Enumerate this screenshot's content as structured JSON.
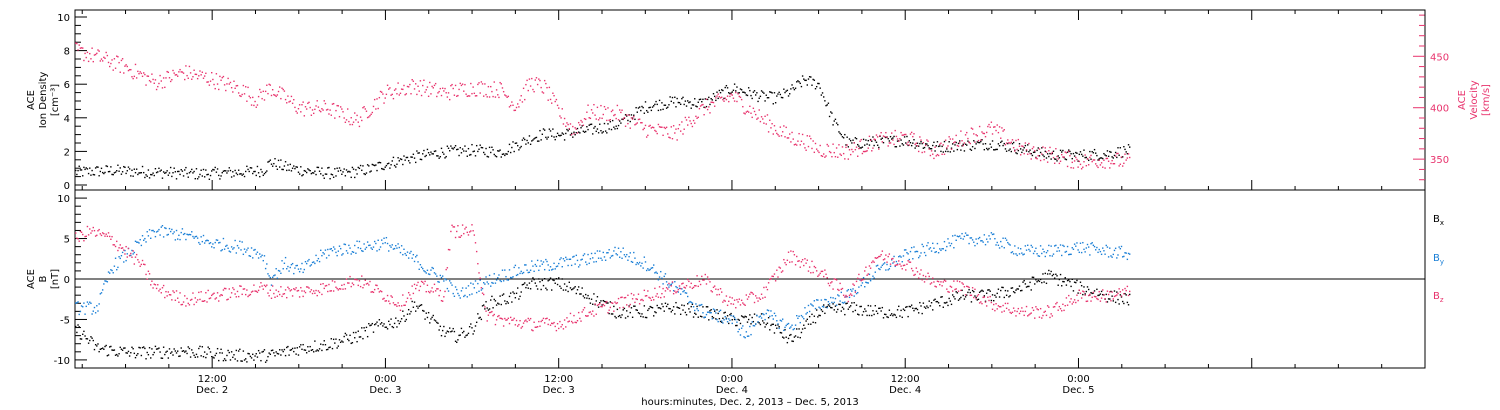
{
  "colors": {
    "black": "#000000",
    "pink": "#e8336d",
    "blue": "#1a7fd6"
  },
  "chart_data": [
    {
      "type": "scatter",
      "panel": "top",
      "ylabel_lines": [
        "ACE",
        "Ion Density",
        "[cm⁻³]"
      ],
      "ylim": [
        0,
        10
      ],
      "y_ticks": [
        "0",
        "2",
        "4",
        "6",
        "8",
        "10"
      ],
      "y2label_lines": [
        "ACE",
        "Velocity",
        "[km/s]"
      ],
      "y2lim": [
        320,
        495
      ],
      "y2_ticks": [
        "350",
        "400",
        "450"
      ],
      "xlim_hours": [
        2.5,
        96
      ],
      "x_major_ticks": [
        {
          "hour": 12,
          "line1": "12:00",
          "line2": "Dec. 2"
        },
        {
          "hour": 24,
          "line1": "0:00",
          "line2": "Dec. 3"
        },
        {
          "hour": 36,
          "line1": "12:00",
          "line2": "Dec. 3"
        },
        {
          "hour": 48,
          "line1": "0:00",
          "line2": "Dec. 4"
        },
        {
          "hour": 60,
          "line1": "12:00",
          "line2": "Dec. 4"
        },
        {
          "hour": 72,
          "line1": "0:00",
          "line2": "Dec. 5"
        }
      ],
      "series": [
        {
          "color": "#000000",
          "axis": "left",
          "x": [
            2.5,
            5,
            8,
            11,
            14,
            15.5,
            16,
            17,
            19,
            21,
            23,
            24,
            26,
            28,
            30,
            32,
            33,
            34,
            35,
            36,
            38,
            40,
            42,
            44,
            46,
            48,
            50,
            51,
            52,
            53,
            54,
            55,
            56,
            58,
            60,
            62,
            64,
            66,
            68,
            70,
            72,
            74,
            75.5
          ],
          "y": [
            0.8,
            0.9,
            0.8,
            0.7,
            0.8,
            0.9,
            1.4,
            1.1,
            0.8,
            0.7,
            1.0,
            1.3,
            1.7,
            2.0,
            2.1,
            2.0,
            2.4,
            2.8,
            3.1,
            3.0,
            3.3,
            3.6,
            4.7,
            5.0,
            4.9,
            5.8,
            5.3,
            5.2,
            5.6,
            6.3,
            6.0,
            3.8,
            2.5,
            2.6,
            2.7,
            2.3,
            2.4,
            2.5,
            2.2,
            1.8,
            1.8,
            1.9,
            2.1
          ]
        },
        {
          "color": "#e8336d",
          "axis": "right",
          "x": [
            2.5,
            4,
            6,
            8,
            10,
            12,
            14,
            15,
            16,
            18,
            20,
            22,
            24,
            26,
            28,
            30,
            32,
            33,
            34,
            35,
            36,
            37,
            38,
            40,
            42,
            44,
            46,
            48,
            50,
            51,
            52,
            53,
            54,
            56,
            58,
            60,
            62,
            64,
            66,
            68,
            70,
            72,
            74,
            75.5
          ],
          "y": [
            456,
            450,
            440,
            425,
            435,
            428,
            418,
            408,
            420,
            400,
            400,
            388,
            415,
            422,
            415,
            420,
            418,
            402,
            425,
            420,
            396,
            378,
            396,
            395,
            380,
            375,
            400,
            412,
            390,
            380,
            372,
            368,
            360,
            358,
            368,
            372,
            358,
            372,
            380,
            360,
            355,
            348,
            350,
            348
          ]
        }
      ]
    },
    {
      "type": "scatter",
      "panel": "bottom",
      "ylabel_lines": [
        "ACE",
        "B",
        "[nT]"
      ],
      "ylim": [
        -11,
        11
      ],
      "y_ticks": [
        "-10",
        "-5",
        "0",
        "5",
        "10"
      ],
      "xlim_hours": [
        2.5,
        96
      ],
      "xlabel": "hours:minutes, Dec.  2, 2013 – Dec.  5, 2013",
      "legend": [
        {
          "label": "B",
          "sub": "x",
          "color": "#000000"
        },
        {
          "label": "B",
          "sub": "y",
          "color": "#1a7fd6"
        },
        {
          "label": "B",
          "sub": "z",
          "color": "#e8336d"
        }
      ],
      "series": [
        {
          "name": "Bx",
          "color": "#000000",
          "x": [
            2.5,
            4,
            6,
            8,
            10,
            12,
            14,
            16,
            18,
            20,
            22,
            23,
            24,
            25,
            26,
            28,
            29,
            30,
            31,
            32,
            33,
            34,
            36,
            38,
            40,
            42,
            44,
            46,
            48,
            50,
            51,
            52,
            53,
            54,
            56,
            58,
            60,
            62,
            64,
            66,
            68,
            70,
            72,
            74,
            75.5
          ],
          "y": [
            -6,
            -8.5,
            -9,
            -9,
            -8.8,
            -9.2,
            -9.4,
            -9.4,
            -8.5,
            -8,
            -7,
            -6,
            -5.5,
            -5,
            -3,
            -6.5,
            -7,
            -6,
            -3,
            -2.5,
            -2,
            -0.5,
            -0.5,
            -2,
            -4,
            -4,
            -3.5,
            -4,
            -5,
            -5,
            -6,
            -7.5,
            -6,
            -4,
            -3.5,
            -4,
            -4,
            -3,
            -2,
            -2,
            -1,
            0.5,
            -1,
            -2,
            -2.5
          ]
        },
        {
          "name": "By",
          "color": "#1a7fd6",
          "x": [
            2.5,
            4,
            5,
            6,
            8,
            10,
            12,
            14,
            15.5,
            16,
            17,
            18,
            20,
            22,
            24,
            26,
            27,
            28,
            29,
            30,
            32,
            34,
            36,
            38,
            40,
            42,
            44,
            46,
            48,
            49,
            50,
            51,
            52,
            53,
            54,
            56,
            58,
            60,
            62,
            64,
            66,
            68,
            70,
            72,
            74,
            75.5
          ],
          "y": [
            -3.5,
            -3.5,
            1.5,
            3,
            6,
            5.5,
            4.5,
            4,
            3,
            0,
            2,
            1,
            3.5,
            4,
            4.5,
            2.5,
            1,
            0,
            -2,
            -1,
            0.5,
            1.5,
            2,
            2.5,
            3.5,
            2,
            -1,
            -4,
            -5,
            -7,
            -4,
            -5,
            -6,
            -4,
            -3,
            -2,
            1,
            3,
            4,
            5,
            5,
            3.5,
            3.5,
            4,
            3.5,
            3.2
          ]
        },
        {
          "name": "Bz",
          "color": "#e8336d",
          "x": [
            2.5,
            3.5,
            5,
            7,
            8,
            10,
            12,
            14,
            15.5,
            16,
            18,
            20,
            22,
            23,
            24,
            25,
            26,
            27,
            28,
            28.5,
            29,
            30,
            31,
            32,
            34,
            36,
            38,
            40,
            42,
            44,
            46,
            48,
            50,
            52,
            54,
            56,
            58,
            60,
            62,
            64,
            66,
            68,
            70,
            72,
            74,
            75.5
          ],
          "y": [
            5,
            6,
            5,
            2,
            -1,
            -2.5,
            -2,
            -1.5,
            -1,
            -1.5,
            -1.5,
            -1,
            0,
            -1,
            -2,
            -3,
            -1,
            -1,
            -2,
            6,
            6,
            6,
            -4.5,
            -5,
            -5.5,
            -5.5,
            -4,
            -3,
            -2,
            -1,
            0,
            -3,
            -2,
            3,
            1,
            -2,
            3,
            2,
            -0.5,
            -1,
            -3,
            -4,
            -4,
            -2,
            -2,
            -1.5
          ]
        }
      ]
    }
  ]
}
